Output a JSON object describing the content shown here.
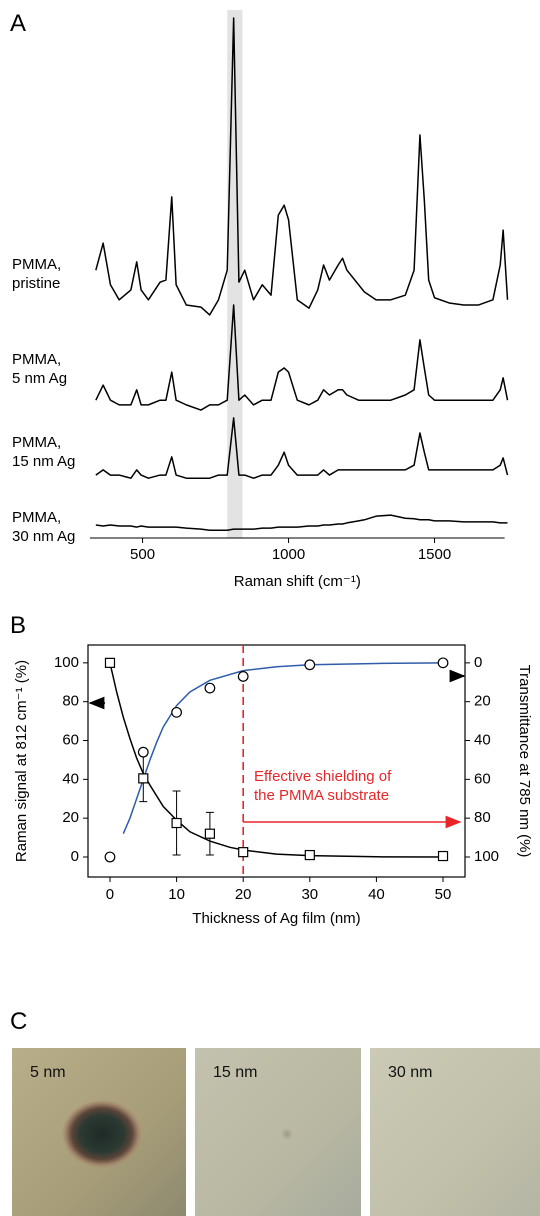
{
  "chart_data": [
    {
      "type": "line",
      "panel_label": "A",
      "x_label": "Raman shift (cm⁻¹)",
      "x": [
        340,
        365,
        390,
        420,
        460,
        480,
        495,
        520,
        560,
        580,
        600,
        615,
        650,
        700,
        730,
        760,
        790,
        812,
        830,
        850,
        880,
        910,
        940,
        965,
        985,
        1000,
        1030,
        1070,
        1100,
        1120,
        1140,
        1170,
        1185,
        1200,
        1240,
        1260,
        1300,
        1350,
        1400,
        1430,
        1450,
        1465,
        1480,
        1500,
        1550,
        1600,
        1650,
        1700,
        1725,
        1735,
        1750
      ],
      "series": [
        {
          "name": "PMMA,\npristine",
          "color": "#000000",
          "values": [
            51.5,
            56.7,
            48.7,
            45.8,
            47.7,
            53.1,
            47.7,
            45.8,
            49.2,
            49.6,
            65.6,
            48.7,
            44.8,
            44.4,
            42.9,
            45.8,
            51.5,
            100,
            49.2,
            51.5,
            45.8,
            48.7,
            46.7,
            62.1,
            64,
            61.2,
            45.8,
            44.2,
            47.7,
            52.5,
            49.6,
            52.5,
            53.8,
            51.5,
            48.7,
            47.3,
            45.8,
            45.8,
            46.7,
            51.5,
            77.5,
            65,
            49.6,
            46.2,
            45.2,
            44.8,
            44.8,
            45.8,
            52.5,
            59.2,
            45.8
          ]
        },
        {
          "name": "PMMA,\n5 nm Ag",
          "color": "#000000",
          "values": [
            26.5,
            29.4,
            26.5,
            25.6,
            25.6,
            28.5,
            25.6,
            25.6,
            26.5,
            26.5,
            31.9,
            26.5,
            25.6,
            24.6,
            25.6,
            25.6,
            26.5,
            44.8,
            26.5,
            27.5,
            25.6,
            26.5,
            26.5,
            31.9,
            32.7,
            31.9,
            26.5,
            25.6,
            26.5,
            28.5,
            27.5,
            28.5,
            28.5,
            27.5,
            26.5,
            26.5,
            26.5,
            26.5,
            27.5,
            28.5,
            38.1,
            32.7,
            27.5,
            26.5,
            26.5,
            26.5,
            26.5,
            26.5,
            28.5,
            30.8,
            26.5
          ]
        },
        {
          "name": "PMMA,\n15 nm Ag",
          "color": "#000000",
          "values": [
            12.1,
            13.1,
            12.1,
            12.1,
            11.5,
            13.1,
            12.1,
            11.5,
            12.1,
            12.1,
            15.6,
            12.1,
            11.5,
            11.5,
            11.5,
            12.1,
            12.1,
            23.1,
            12.1,
            12.1,
            11.5,
            12.1,
            12.1,
            14,
            16.5,
            14,
            12.1,
            12.1,
            12.1,
            13.1,
            12.1,
            13.1,
            13.1,
            13.1,
            13.1,
            13.1,
            13.1,
            13.1,
            13.1,
            14,
            20.2,
            16.5,
            13.1,
            13.1,
            13.1,
            13.1,
            13.1,
            13.1,
            14,
            15.4,
            12.1
          ]
        },
        {
          "name": "PMMA,\n30 nm Ag",
          "color": "#000000",
          "values": [
            2.5,
            2.3,
            2.5,
            2.3,
            2.3,
            2.1,
            2.3,
            2.1,
            2.1,
            2.1,
            2.1,
            2.1,
            1.9,
            1.7,
            1.5,
            1.5,
            1.5,
            1.7,
            1.7,
            1.7,
            1.7,
            1.9,
            1.9,
            2.1,
            2.1,
            2.1,
            2.1,
            2.3,
            2.3,
            2.5,
            2.5,
            2.7,
            2.7,
            2.9,
            3.3,
            3.5,
            4.2,
            4.4,
            3.8,
            3.7,
            3.5,
            3.5,
            3.5,
            3.3,
            3.3,
            3.1,
            3.1,
            3.1,
            2.9,
            2.9,
            2.9
          ]
        }
      ],
      "xlim": [
        320,
        1740
      ],
      "ylim": [
        0,
        100
      ],
      "xticks": [
        500,
        1000,
        1500
      ],
      "highlight_band": [
        790,
        842
      ],
      "highlight_color": "#e3e3e3"
    },
    {
      "type": "scatter",
      "panel_label": "B",
      "x_label": "Thickness of Ag film (nm)",
      "y_label": "Raman signal at 812 cm⁻¹ (%)",
      "y2_label": "Transmittance at 785 nm (%)",
      "x": [
        0,
        5,
        10,
        15,
        20,
        30,
        50
      ],
      "series": [
        {
          "color": "#000000",
          "marker": "square",
          "axis": "y",
          "values": [
            100,
            40.5,
            17.5,
            12,
            2.5,
            1,
            0.5
          ],
          "errors": [
            null,
            12,
            16.5,
            11,
            null,
            null,
            null
          ]
        },
        {
          "color": "#000000",
          "marker": "circle",
          "axis": "y2",
          "values": [
            100,
            46,
            25.5,
            13,
            7,
            1,
            0
          ]
        }
      ],
      "fits": [
        {
          "color": "#000000",
          "axis": "y",
          "x": [
            0,
            1,
            2,
            3,
            4,
            5,
            6,
            8,
            10,
            12,
            15,
            18,
            20,
            25,
            30,
            40,
            50
          ],
          "values": [
            100,
            85,
            72,
            61,
            51,
            43,
            37,
            26,
            19,
            13,
            8.2,
            5,
            3.6,
            1.5,
            0.7,
            0.1,
            0
          ]
        },
        {
          "color": "#2f5dab",
          "axis": "y2",
          "x": [
            2,
            3,
            4,
            5,
            6,
            7,
            8,
            10,
            12,
            15,
            20,
            25,
            30,
            40,
            50
          ],
          "values": [
            88,
            80,
            70,
            60,
            50,
            41,
            33,
            22,
            15,
            9,
            4,
            2,
            1,
            0.3,
            0
          ]
        }
      ],
      "xlim": [
        -3.3,
        53.3
      ],
      "ylim": [
        -10.3,
        109.2
      ],
      "y2lim": [
        110.3,
        -9.2
      ],
      "xticks": [
        0,
        10,
        20,
        30,
        40,
        50
      ],
      "yticks": [
        0,
        20,
        40,
        60,
        80,
        100
      ],
      "y2ticks": [
        0,
        20,
        40,
        60,
        80,
        100
      ],
      "reference_line": {
        "x": 20,
        "color": "#e8262a"
      },
      "annotation": "Effective shielding of\nthe PMMA substrate",
      "annotation_color": "#e8262a"
    }
  ],
  "photos": {
    "panel_label": "C",
    "labels": [
      "5 nm",
      "15 nm",
      "30 nm"
    ]
  }
}
